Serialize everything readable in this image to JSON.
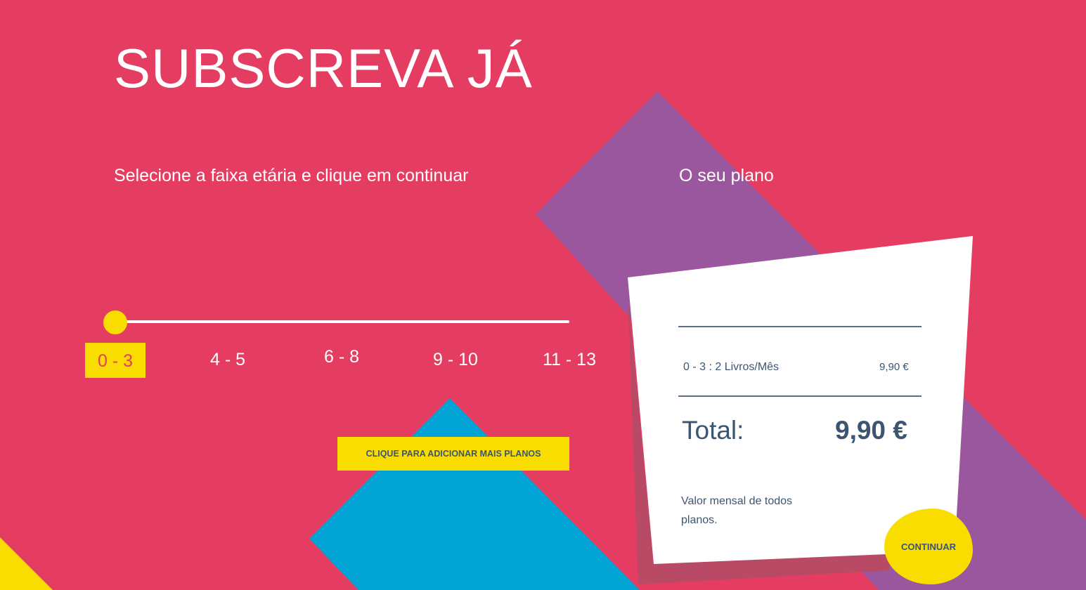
{
  "page": {
    "title": "SUBSCREVA JÁ",
    "instruction": "Selecione a faixa etária e clique em continuar"
  },
  "slider": {
    "options": [
      "0 - 3",
      "4 - 5",
      "6 - 8",
      "9 - 10",
      "11 - 13"
    ],
    "selected": "0 - 3",
    "position_fraction": 0
  },
  "add_button": "CLIQUE PARA ADICIONAR MAIS PLANOS",
  "plan": {
    "heading": "O seu plano",
    "line_item": {
      "label": "0 - 3 : 2 Livros/Mês",
      "price": "9,90 €"
    },
    "total_label": "Total:",
    "total_value": "9,90 €",
    "note": "Valor mensal de todos planos.",
    "continue_label": "CONTINUAR"
  },
  "colors": {
    "background": "#E53D62",
    "accent_yellow": "#F9DD00",
    "purple": "#9B579E",
    "blue": "#00A3D4",
    "text_dark": "#3C5570"
  }
}
